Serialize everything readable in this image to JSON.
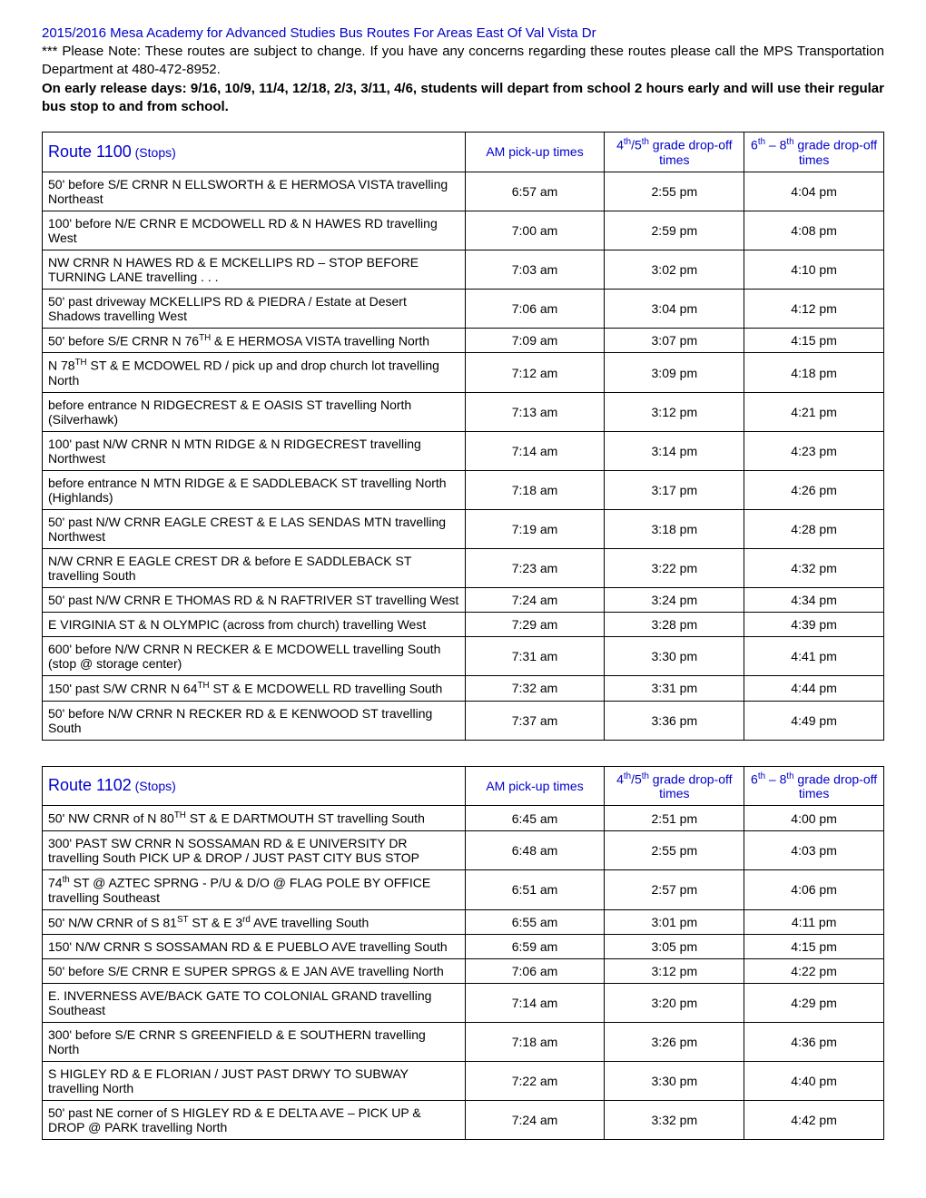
{
  "header": {
    "title": "2015/2016 Mesa Academy for Advanced Studies Bus Routes For Areas East Of Val Vista Dr",
    "note": "*** Please Note: These routes are subject to change. If you have any concerns regarding these routes please call the MPS Transportation Department at 480-472-8952.",
    "early": "On early release days: 9/16, 10/9, 11/4, 12/18, 2/3, 3/11, 4/6, students will depart from school 2 hours early and will use their regular bus stop to and from school."
  },
  "cols": {
    "am": "AM pick-up times",
    "d45_a": "4",
    "d45_b": "/5",
    "d45_c": " grade drop-off times",
    "d68_a": "6",
    "d68_b": " – 8",
    "d68_c": " grade drop-off times",
    "stops_suffix": "(Stops)"
  },
  "table1": {
    "route": "Route 1100",
    "rows": [
      {
        "stop": "50' before S/E CRNR N ELLSWORTH  & E HERMOSA VISTA travelling Northeast",
        "am": "6:57 am",
        "d1": "2:55 pm",
        "d2": "4:04 pm"
      },
      {
        "stop": "100' before N/E CRNR E MCDOWELL RD & N HAWES RD travelling West",
        "am": "7:00 am",
        "d1": "2:59 pm",
        "d2": "4:08 pm"
      },
      {
        "stop": "NW CRNR N HAWES RD & E MCKELLIPS RD – STOP BEFORE TURNING LANE travelling  . . .",
        "am": "7:03 am",
        "d1": "3:02 pm",
        "d2": "4:10 pm"
      },
      {
        "stop": "50' past driveway MCKELLIPS RD & PIEDRA / Estate at Desert Shadows travelling West",
        "am": "7:06 am",
        "d1": "3:04 pm",
        "d2": "4:12 pm"
      },
      {
        "stop": "50' before S/E CRNR N 76<sup>TH</sup> & E HERMOSA VISTA travelling North",
        "am": "7:09 am",
        "d1": "3:07 pm",
        "d2": "4:15 pm",
        "html": true
      },
      {
        "stop": " N 78<sup>TH</sup> ST & E MCDOWEL RD / pick up and drop church lot travelling North",
        "am": "7:12 am",
        "d1": "3:09 pm",
        "d2": "4:18 pm",
        "html": true
      },
      {
        "stop": "before entrance N RIDGECREST & E OASIS ST travelling North (Silverhawk)",
        "am": "7:13 am",
        "d1": "3:12 pm",
        "d2": "4:21 pm"
      },
      {
        "stop": "100' past N/W CRNR N MTN RIDGE & N RIDGECREST travelling Northwest",
        "am": "7:14 am",
        "d1": "3:14 pm",
        "d2": "4:23 pm"
      },
      {
        "stop": "before entrance N MTN RIDGE & E SADDLEBACK ST travelling North (Highlands)",
        "am": "7:18 am",
        "d1": "3:17 pm",
        "d2": "4:26 pm"
      },
      {
        "stop": "50' past N/W CRNR EAGLE CREST & E LAS SENDAS MTN travelling Northwest",
        "am": "7:19 am",
        "d1": "3:18 pm",
        "d2": "4:28 pm"
      },
      {
        "stop": "N/W CRNR E EAGLE CREST DR & before E SADDLEBACK ST travelling South",
        "am": "7:23 am",
        "d1": "3:22 pm",
        "d2": "4:32 pm"
      },
      {
        "stop": "50' past  N/W CRNR E THOMAS RD & N RAFTRIVER ST travelling West",
        "am": "7:24 am",
        "d1": "3:24 pm",
        "d2": "4:34 pm"
      },
      {
        "stop": "E VIRGINIA ST & N OLYMPIC (across from church) travelling West",
        "am": "7:29 am",
        "d1": "3:28 pm",
        "d2": "4:39 pm"
      },
      {
        "stop": "600' before N/W CRNR N RECKER & E MCDOWELL travelling South (stop @ storage center)",
        "am": "7:31 am",
        "d1": "3:30 pm",
        "d2": "4:41 pm"
      },
      {
        "stop": "150' past S/W CRNR N 64<sup>TH</sup> ST & E MCDOWELL RD travelling South",
        "am": "7:32 am",
        "d1": "3:31 pm",
        "d2": "4:44 pm",
        "html": true
      },
      {
        "stop": "50' before N/W CRNR N RECKER RD & E KENWOOD ST travelling South",
        "am": "7:37 am",
        "d1": "3:36 pm",
        "d2": "4:49 pm"
      }
    ]
  },
  "table2": {
    "route": "Route 1102",
    "rows": [
      {
        "stop": "50' NW CRNR of N 80<sup>TH</sup> ST & E DARTMOUTH ST travelling South",
        "am": "6:45 am",
        "d1": "2:51 pm",
        "d2": "4:00 pm",
        "html": true
      },
      {
        "stop": "300' PAST SW CRNR N SOSSAMAN RD & E UNIVERSITY DR travelling South PICK UP & DROP / JUST PAST CITY BUS STOP",
        "am": "6:48 am",
        "d1": "2:55 pm",
        "d2": "4:03 pm"
      },
      {
        "stop": "74<sup>th</sup> ST @ AZTEC SPRNG - P/U & D/O @ FLAG POLE BY OFFICE travelling Southeast",
        "am": "6:51 am",
        "d1": "2:57 pm",
        "d2": "4:06 pm",
        "html": true
      },
      {
        "stop": "50' N/W CRNR of S 81<sup>ST</sup> ST & E 3<sup>rd</sup>  AVE travelling South",
        "am": "6:55  am",
        "d1": "3:01  pm",
        "d2": "4:11  pm",
        "html": true
      },
      {
        "stop": "150' N/W CRNR S SOSSAMAN RD & E PUEBLO AVE travelling South",
        "am": "6:59  am",
        "d1": "3:05 pm",
        "d2": "4:15  pm"
      },
      {
        "stop": "50' before S/E CRNR E SUPER SPRGS & E JAN AVE travelling North",
        "am": "7:06  am",
        "d1": "3:12  pm",
        "d2": "4:22  pm"
      },
      {
        "stop": "E. INVERNESS AVE/BACK GATE TO COLONIAL GRAND travelling Southeast",
        "am": "7:14 am",
        "d1": "3:20  pm",
        "d2": "4:29  pm"
      },
      {
        "stop": "300' before S/E CRNR S GREENFIELD & E SOUTHERN travelling North",
        "am": "7:18  am",
        "d1": "3:26 pm",
        "d2": "4:36  pm"
      },
      {
        "stop": "S HIGLEY RD & E FLORIAN / JUST PAST DRWY TO SUBWAY travelling North",
        "am": "7:22 am",
        "d1": "3:30 pm",
        "d2": "4:40 pm"
      },
      {
        "stop": "50' past NE corner of S HIGLEY RD & E DELTA AVE – PICK UP & DROP @ PARK travelling North",
        "am": "7:24 am",
        "d1": "3:32 pm",
        "d2": "4:42  pm"
      }
    ]
  }
}
